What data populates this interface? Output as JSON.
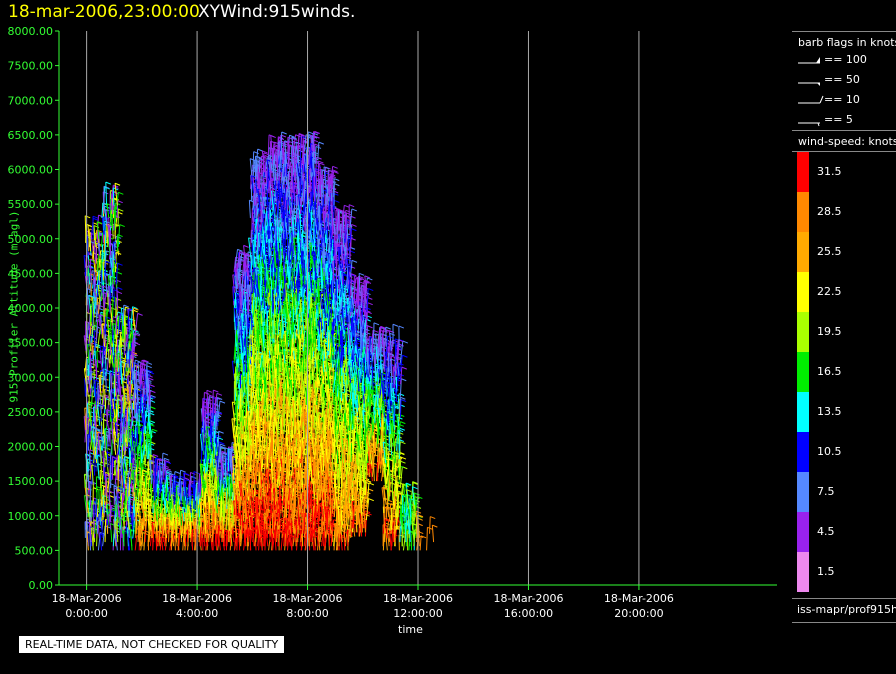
{
  "header": {
    "date_time": "18-mar-2006,23:00:00",
    "product": "XYWind:915winds."
  },
  "footer": {
    "disclaimer": "REAL-TIME DATA, NOT CHECKED FOR QUALITY"
  },
  "colors": {
    "background": "#000000",
    "axis": "#33ff33",
    "title_date": "#ffff00",
    "vertical_grid": "#aaaaaa"
  },
  "chart_data": {
    "type": "scatter",
    "subtype": "wind-barbs-time-height",
    "xlabel": "time",
    "ylabel": "915 Profiler Altitude (m agl)",
    "xlim_hours": [
      -1,
      25
    ],
    "ylim": [
      0,
      8000
    ],
    "y_ticks": [
      "0.00",
      "500.00",
      "1000.00",
      "1500.00",
      "2000.00",
      "2500.00",
      "3000.00",
      "3500.00",
      "4000.00",
      "4500.00",
      "5000.00",
      "5500.00",
      "6000.00",
      "6500.00",
      "7000.00",
      "7500.00",
      "8000.00"
    ],
    "x_ticks": [
      {
        "hour": 0,
        "date": "18-Mar-2006",
        "time": "0:00:00"
      },
      {
        "hour": 4,
        "date": "18-Mar-2006",
        "time": "4:00:00"
      },
      {
        "hour": 8,
        "date": "18-Mar-2006",
        "time": "8:00:00"
      },
      {
        "hour": 12,
        "date": "18-Mar-2006",
        "time": "12:00:00"
      },
      {
        "hour": 16,
        "date": "18-Mar-2006",
        "time": "16:00:00"
      },
      {
        "hour": 20,
        "date": "18-Mar-2006",
        "time": "20:00:00"
      }
    ],
    "grid": "vertical lines at x ticks",
    "color_scale_knots": [
      {
        "value": "31.5",
        "color": "#ff0000"
      },
      {
        "value": "28.5",
        "color": "#ff8800"
      },
      {
        "value": "25.5",
        "color": "#ffaa00"
      },
      {
        "value": "22.5",
        "color": "#ffff00"
      },
      {
        "value": "19.5",
        "color": "#aaff00"
      },
      {
        "value": "16.5",
        "color": "#00ee00"
      },
      {
        "value": "13.5",
        "color": "#00ffff"
      },
      {
        "value": "10.5",
        "color": "#0000ff"
      },
      {
        "value": "7.5",
        "color": "#5588ff"
      },
      {
        "value": "4.5",
        "color": "#9922ee"
      },
      {
        "value": "1.5",
        "color": "#ee88ee"
      }
    ],
    "barb_legend": [
      {
        "label": "== 100",
        "kind": "pennant"
      },
      {
        "label": "== 50",
        "kind": "pennant-small"
      },
      {
        "label": "== 10",
        "kind": "full"
      },
      {
        "label": "== 5",
        "kind": "half"
      }
    ],
    "columns": [
      {
        "t": 0.0,
        "z": [
          0.5,
          5.0
        ],
        "mix": "rainbow",
        "density": 0.6
      },
      {
        "t": 0.6,
        "z": [
          0.5,
          5.5
        ],
        "mix": "rainbow",
        "density": 0.6
      },
      {
        "t": 1.2,
        "z": [
          0.5,
          3.8
        ],
        "mix": "rainbow",
        "density": 0.8
      },
      {
        "t": 1.8,
        "z": [
          0.5,
          3.0
        ],
        "mix": "warm",
        "density": 0.8
      },
      {
        "t": 2.4,
        "z": [
          0.5,
          1.6
        ],
        "mix": "hot",
        "density": 1.0
      },
      {
        "t": 3.0,
        "z": [
          0.5,
          1.4
        ],
        "mix": "hot",
        "density": 1.0
      },
      {
        "t": 3.6,
        "z": [
          0.5,
          1.4
        ],
        "mix": "hot",
        "density": 1.0
      },
      {
        "t": 4.2,
        "z": [
          0.5,
          2.5
        ],
        "mix": "hot",
        "density": 1.0
      },
      {
        "t": 4.8,
        "z": [
          0.5,
          1.8
        ],
        "mix": "hot",
        "density": 1.0
      },
      {
        "t": 5.4,
        "z": [
          0.5,
          4.6
        ],
        "mix": "hot",
        "density": 1.0
      },
      {
        "t": 6.0,
        "z": [
          0.5,
          6.0
        ],
        "mix": "hot",
        "density": 1.0
      },
      {
        "t": 6.6,
        "z": [
          0.5,
          6.2
        ],
        "mix": "hot",
        "density": 1.0
      },
      {
        "t": 7.2,
        "z": [
          0.5,
          6.2
        ],
        "mix": "hot",
        "density": 1.0
      },
      {
        "t": 7.8,
        "z": [
          0.5,
          6.3
        ],
        "mix": "hot",
        "density": 1.0
      },
      {
        "t": 8.4,
        "z": [
          0.5,
          5.8
        ],
        "mix": "hot",
        "density": 1.0
      },
      {
        "t": 9.0,
        "z": [
          0.5,
          5.2
        ],
        "mix": "warm",
        "density": 1.0
      },
      {
        "t": 9.6,
        "z": [
          0.7,
          4.2
        ],
        "mix": "warm",
        "density": 1.0
      },
      {
        "t": 10.2,
        "z": [
          1.5,
          3.5
        ],
        "mix": "warm",
        "density": 0.9
      },
      {
        "t": 10.8,
        "z": [
          0.5,
          3.5
        ],
        "mix": "warm",
        "density": 0.7
      },
      {
        "t": 11.4,
        "z": [
          0.5,
          1.2
        ],
        "mix": "cool",
        "density": 0.8
      },
      {
        "t": 12.0,
        "z": [
          0.5,
          0.8
        ],
        "mix": "orange",
        "density": 0.4
      }
    ]
  },
  "legend": {
    "barb_title": "barb flags in knots",
    "speed_title": "wind-speed: knots",
    "source": "iss-mapr/prof915h"
  }
}
